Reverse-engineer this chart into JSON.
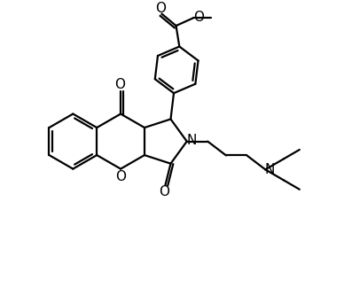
{
  "bg": "#ffffff",
  "lc": "#000000",
  "lw": 1.6,
  "figsize": [
    3.88,
    3.42
  ],
  "dpi": 100,
  "xlim": [
    0,
    10
  ],
  "ylim": [
    0,
    9
  ]
}
